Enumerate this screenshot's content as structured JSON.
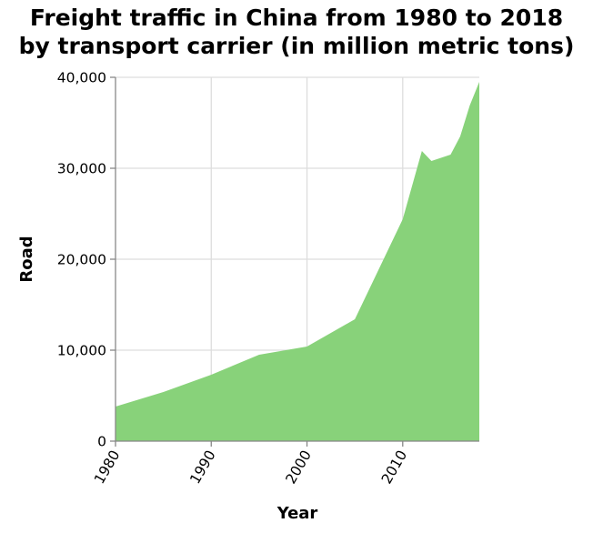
{
  "chart_data": {
    "type": "area",
    "title_lines": [
      "Freight traffic in China from 1980 to 2018",
      "by transport carrier (in million metric tons)"
    ],
    "xlabel": "Year",
    "ylabel": "Road",
    "xlim": [
      1980,
      2018
    ],
    "ylim": [
      0,
      40000
    ],
    "x_ticks": [
      1980,
      1990,
      2000,
      2010
    ],
    "y_ticks": [
      0,
      10000,
      20000,
      30000,
      40000
    ],
    "x_tick_labels": [
      "1980",
      "1990",
      "2000",
      "2010"
    ],
    "y_tick_labels": [
      "0",
      "10,000",
      "20,000",
      "30,000",
      "40,000"
    ],
    "grid": true,
    "series": [
      {
        "color": "#88d27a",
        "x": [
          1980,
          1985,
          1990,
          1995,
          2000,
          2005,
          2010,
          2012,
          2013,
          2015,
          2016,
          2017,
          2018
        ],
        "values": [
          3800,
          5400,
          7300,
          9500,
          10400,
          13400,
          24400,
          31900,
          30800,
          31500,
          33500,
          36900,
          39500
        ]
      }
    ]
  }
}
